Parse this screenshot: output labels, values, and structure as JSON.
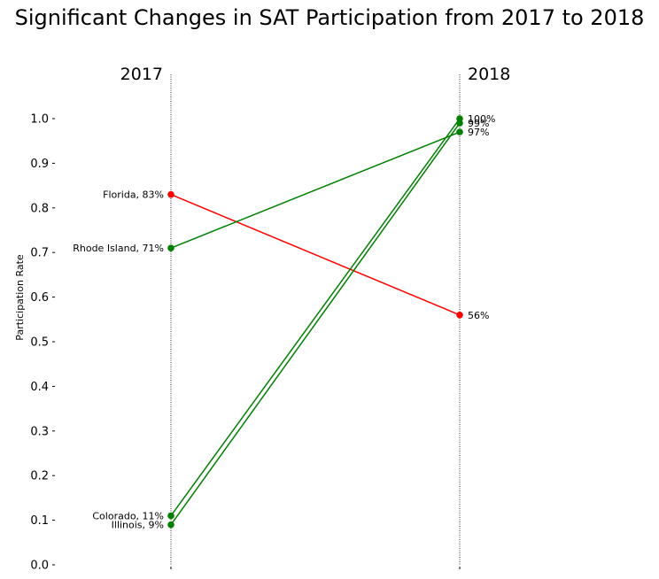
{
  "chart_data": {
    "type": "line",
    "title": "Significant Changes in SAT Participation from 2017 to 2018",
    "ylabel": "Participation Rate",
    "xlabel": "",
    "x": [
      "2017",
      "2018"
    ],
    "ylim": [
      0,
      1.0
    ],
    "yticks": [
      "0.0",
      "0.1",
      "0.2",
      "0.3",
      "0.4",
      "0.5",
      "0.6",
      "0.7",
      "0.8",
      "0.9",
      "1.0"
    ],
    "grid": false,
    "colors": {
      "increase": "#008000",
      "decrease": "#ff0000",
      "guide": "#000000"
    },
    "series": [
      {
        "name": "Florida",
        "values": [
          0.83,
          0.56
        ],
        "trend": "decrease",
        "left_label": "Florida, 83%",
        "right_label": "56%"
      },
      {
        "name": "Rhode Island",
        "values": [
          0.71,
          0.97
        ],
        "trend": "increase",
        "left_label": "Rhode Island, 71%",
        "right_label": "97%"
      },
      {
        "name": "Colorado",
        "values": [
          0.11,
          1.0
        ],
        "trend": "increase",
        "left_label": "Colorado, 11%",
        "right_label": "100%"
      },
      {
        "name": "Illinois",
        "values": [
          0.09,
          0.99
        ],
        "trend": "increase",
        "left_label": "Illinois, 9%",
        "right_label": "99%"
      }
    ]
  }
}
